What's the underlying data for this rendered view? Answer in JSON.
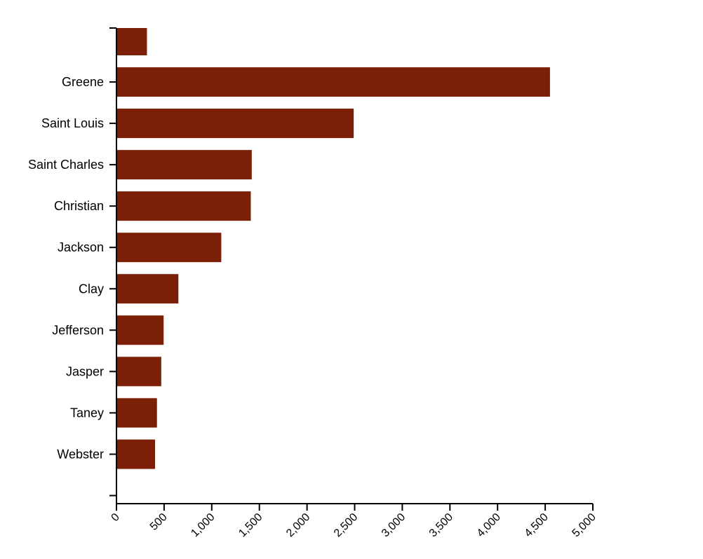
{
  "chart_data": {
    "type": "bar",
    "orientation": "horizontal",
    "categories": [
      "",
      "Greene",
      "Saint Louis",
      "Saint Charles",
      "Christian",
      "Jackson",
      "Clay",
      "Jefferson",
      "Jasper",
      "Taney",
      "Webster",
      ""
    ],
    "values": [
      320,
      4550,
      2490,
      1420,
      1410,
      1100,
      650,
      495,
      470,
      425,
      405,
      null
    ],
    "title": "",
    "xlabel": "",
    "ylabel": "",
    "xlim": [
      0,
      5000
    ],
    "xticks": [
      "0",
      "500",
      "1,000",
      "1,500",
      "2,000",
      "2,500",
      "3,000",
      "3,500",
      "4,000",
      "4,500",
      "5,000"
    ],
    "grid": false,
    "legend": "none",
    "colors": {
      "bar": "#7B1F07",
      "axis": "#000000",
      "text": "#000000"
    }
  }
}
